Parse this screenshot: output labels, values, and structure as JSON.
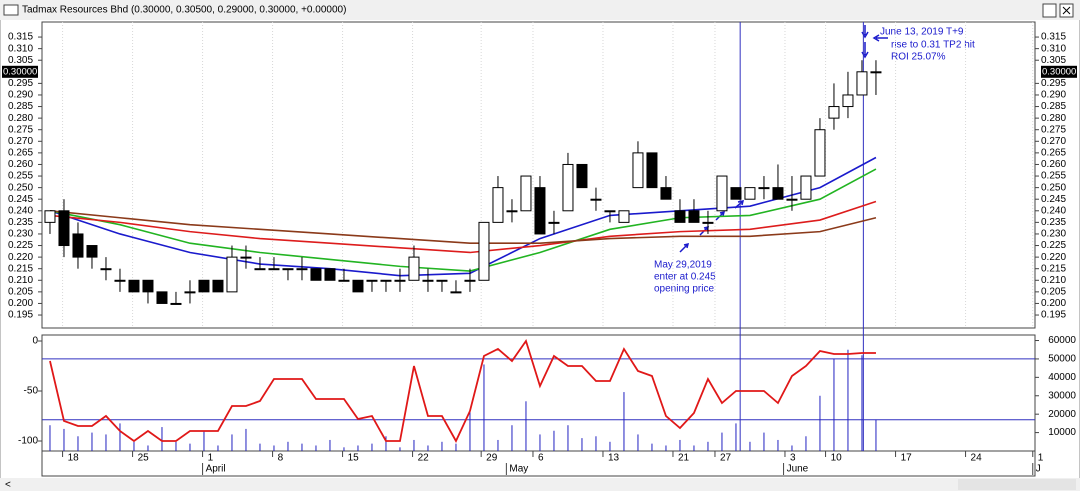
{
  "chart_data": {
    "type": "candlestick",
    "title": "Tadmax Resources Bhd (0.30000, 0.30500, 0.29000, 0.30000, +0.00000)",
    "ohlc": [
      [
        0.235,
        0.24,
        0.23,
        0.24
      ],
      [
        0.24,
        0.245,
        0.22,
        0.225
      ],
      [
        0.23,
        0.235,
        0.215,
        0.22
      ],
      [
        0.225,
        0.225,
        0.215,
        0.22
      ],
      [
        0.215,
        0.22,
        0.21,
        0.215
      ],
      [
        0.21,
        0.215,
        0.205,
        0.21
      ],
      [
        0.21,
        0.21,
        0.205,
        0.205
      ],
      [
        0.21,
        0.21,
        0.2,
        0.205
      ],
      [
        0.205,
        0.205,
        0.2,
        0.2
      ],
      [
        0.2,
        0.205,
        0.2,
        0.2
      ],
      [
        0.205,
        0.21,
        0.2,
        0.205
      ],
      [
        0.21,
        0.21,
        0.205,
        0.205
      ],
      [
        0.21,
        0.21,
        0.205,
        0.205
      ],
      [
        0.205,
        0.225,
        0.205,
        0.22
      ],
      [
        0.22,
        0.225,
        0.215,
        0.22
      ],
      [
        0.215,
        0.22,
        0.215,
        0.215
      ],
      [
        0.215,
        0.22,
        0.215,
        0.215
      ],
      [
        0.215,
        0.215,
        0.21,
        0.215
      ],
      [
        0.215,
        0.22,
        0.21,
        0.215
      ],
      [
        0.215,
        0.215,
        0.21,
        0.21
      ],
      [
        0.215,
        0.215,
        0.21,
        0.21
      ],
      [
        0.21,
        0.215,
        0.21,
        0.21
      ],
      [
        0.21,
        0.21,
        0.205,
        0.205
      ],
      [
        0.21,
        0.21,
        0.205,
        0.21
      ],
      [
        0.21,
        0.21,
        0.205,
        0.21
      ],
      [
        0.21,
        0.215,
        0.205,
        0.21
      ],
      [
        0.21,
        0.225,
        0.21,
        0.22
      ],
      [
        0.21,
        0.215,
        0.205,
        0.21
      ],
      [
        0.21,
        0.21,
        0.205,
        0.21
      ],
      [
        0.205,
        0.21,
        0.205,
        0.205
      ],
      [
        0.21,
        0.215,
        0.205,
        0.21
      ],
      [
        0.21,
        0.235,
        0.21,
        0.235
      ],
      [
        0.235,
        0.255,
        0.235,
        0.25
      ],
      [
        0.24,
        0.245,
        0.235,
        0.24
      ],
      [
        0.24,
        0.255,
        0.24,
        0.255
      ],
      [
        0.25,
        0.255,
        0.23,
        0.23
      ],
      [
        0.235,
        0.24,
        0.23,
        0.235
      ],
      [
        0.24,
        0.265,
        0.24,
        0.26
      ],
      [
        0.26,
        0.26,
        0.25,
        0.25
      ],
      [
        0.245,
        0.25,
        0.24,
        0.245
      ],
      [
        0.24,
        0.24,
        0.235,
        0.24
      ],
      [
        0.235,
        0.24,
        0.235,
        0.24
      ],
      [
        0.25,
        0.27,
        0.25,
        0.265
      ],
      [
        0.265,
        0.265,
        0.25,
        0.25
      ],
      [
        0.25,
        0.255,
        0.245,
        0.245
      ],
      [
        0.24,
        0.245,
        0.235,
        0.235
      ],
      [
        0.24,
        0.245,
        0.235,
        0.235
      ],
      [
        0.235,
        0.24,
        0.23,
        0.235
      ],
      [
        0.24,
        0.255,
        0.24,
        0.255
      ],
      [
        0.25,
        0.25,
        0.245,
        0.245
      ],
      [
        0.245,
        0.25,
        0.245,
        0.25
      ],
      [
        0.25,
        0.255,
        0.245,
        0.25
      ],
      [
        0.25,
        0.26,
        0.245,
        0.245
      ],
      [
        0.245,
        0.255,
        0.24,
        0.245
      ],
      [
        0.245,
        0.255,
        0.245,
        0.255
      ],
      [
        0.255,
        0.28,
        0.255,
        0.275
      ],
      [
        0.28,
        0.295,
        0.275,
        0.285
      ],
      [
        0.285,
        0.3,
        0.28,
        0.29
      ],
      [
        0.29,
        0.305,
        0.29,
        0.3
      ],
      [
        0.3,
        0.305,
        0.29,
        0.3
      ]
    ],
    "series": [
      {
        "color": "#1a1acc",
        "x": [
          0,
          5,
          10,
          15,
          20,
          25,
          30,
          35,
          40,
          45,
          50,
          55,
          59
        ],
        "values": [
          0.24,
          0.23,
          0.222,
          0.217,
          0.215,
          0.212,
          0.213,
          0.228,
          0.238,
          0.24,
          0.242,
          0.25,
          0.263
        ]
      },
      {
        "color": "#22b422",
        "x": [
          0,
          5,
          10,
          15,
          20,
          25,
          30,
          35,
          40,
          45,
          50,
          55,
          59
        ],
        "values": [
          0.24,
          0.234,
          0.226,
          0.222,
          0.219,
          0.216,
          0.214,
          0.222,
          0.232,
          0.237,
          0.238,
          0.245,
          0.258
        ]
      },
      {
        "color": "#dd1c1c",
        "x": [
          0,
          5,
          10,
          15,
          20,
          25,
          30,
          35,
          40,
          45,
          50,
          55,
          59
        ],
        "values": [
          0.238,
          0.235,
          0.231,
          0.228,
          0.226,
          0.224,
          0.222,
          0.225,
          0.229,
          0.231,
          0.232,
          0.236,
          0.244
        ]
      },
      {
        "color": "#8b3a1a",
        "x": [
          0,
          5,
          10,
          15,
          20,
          25,
          30,
          35,
          40,
          45,
          50,
          55,
          59
        ],
        "values": [
          0.24,
          0.237,
          0.234,
          0.232,
          0.23,
          0.228,
          0.226,
          0.226,
          0.228,
          0.229,
          0.229,
          0.231,
          0.237
        ]
      }
    ],
    "xlim": [
      -0.57,
      70.36
    ],
    "ylim": [
      0.1894,
      0.3215
    ],
    "yticks": [
      {
        "value": 0.315,
        "label": "0.315"
      },
      {
        "value": 0.31,
        "label": "0.310"
      },
      {
        "value": 0.305,
        "label": "0.305"
      },
      {
        "value": 0.295,
        "label": "0.295"
      },
      {
        "value": 0.29,
        "label": "0.290"
      },
      {
        "value": 0.285,
        "label": "0.285"
      },
      {
        "value": 0.28,
        "label": "0.280"
      },
      {
        "value": 0.275,
        "label": "0.275"
      },
      {
        "value": 0.27,
        "label": "0.270"
      },
      {
        "value": 0.265,
        "label": "0.265"
      },
      {
        "value": 0.26,
        "label": "0.260"
      },
      {
        "value": 0.255,
        "label": "0.255"
      },
      {
        "value": 0.25,
        "label": "0.250"
      },
      {
        "value": 0.245,
        "label": "0.245"
      },
      {
        "value": 0.24,
        "label": "0.240"
      },
      {
        "value": 0.235,
        "label": "0.235"
      },
      {
        "value": 0.23,
        "label": "0.230"
      },
      {
        "value": 0.225,
        "label": "0.225"
      },
      {
        "value": 0.22,
        "label": "0.220"
      },
      {
        "value": 0.215,
        "label": "0.215"
      },
      {
        "value": 0.21,
        "label": "0.210"
      },
      {
        "value": 0.205,
        "label": "0.205"
      },
      {
        "value": 0.2,
        "label": "0.200"
      },
      {
        "value": 0.195,
        "label": "0.195"
      }
    ],
    "last_price": {
      "value": 0.3,
      "label": "0.30000"
    },
    "xticks": [
      {
        "value": 0.9,
        "label": "18"
      },
      {
        "value": 5.9,
        "label": "25"
      },
      {
        "value": 10.9,
        "label": "1"
      },
      {
        "value": 15.9,
        "label": "8"
      },
      {
        "value": 20.9,
        "label": "15"
      },
      {
        "value": 25.9,
        "label": "22"
      },
      {
        "value": 30.8,
        "label": "29"
      },
      {
        "value": 34.5,
        "label": "6"
      },
      {
        "value": 39.5,
        "label": "13"
      },
      {
        "value": 44.5,
        "label": "21"
      },
      {
        "value": 47.5,
        "label": "27"
      },
      {
        "value": 52.5,
        "label": "3"
      },
      {
        "value": 55.4,
        "label": "10"
      },
      {
        "value": 60.4,
        "label": "17"
      },
      {
        "value": 65.4,
        "label": "24"
      },
      {
        "value": 70.2,
        "label": "1"
      }
    ],
    "month_ticks": [
      {
        "value": 10.9,
        "label": "April"
      },
      {
        "value": 32.6,
        "label": "May"
      },
      {
        "value": 52.4,
        "label": "June"
      },
      {
        "value": 70.2,
        "label": "J"
      }
    ],
    "grid": true,
    "vlines": [
      49.3,
      58.1
    ],
    "annotations": [
      "June 13, 2019 T+9",
      "rise to 0.31 TP2 hit",
      "ROI 25.07%",
      "May 29,2019",
      "enter at 0.245",
      "opening price"
    ],
    "oscillator": {
      "color": "#e01818",
      "ylim": [
        -110,
        6
      ],
      "yticks": [
        0,
        -50,
        -100
      ],
      "values": [
        -20,
        -80,
        -85,
        -85,
        -75,
        -90,
        -100,
        -90,
        -100,
        -100,
        -90,
        -90,
        -90,
        -65,
        -65,
        -60,
        -38,
        -38,
        -38,
        -58,
        -58,
        -58,
        -78,
        -75,
        -100,
        -100,
        -25,
        -75,
        -75,
        -100,
        -70,
        -15,
        -8,
        -20,
        0,
        -45,
        -15,
        -25,
        -25,
        -40,
        -40,
        -8,
        -30,
        -35,
        -75,
        -87,
        -72,
        -38,
        -62,
        -50,
        -50,
        -50,
        -62,
        -35,
        -25,
        -10,
        -13,
        -13,
        -12,
        -12
      ]
    },
    "volume": {
      "color": "#2020c0",
      "y2lim": [
        0,
        63000
      ],
      "y2ticks": [
        10000,
        20000,
        30000,
        40000,
        50000,
        60000
      ],
      "reference_lines": [
        50000,
        17000
      ],
      "values": [
        14000,
        12000,
        8000,
        10000,
        9000,
        15000,
        5000,
        3000,
        13000,
        5000,
        4000,
        11000,
        3000,
        9000,
        12000,
        4000,
        3000,
        5000,
        4000,
        3000,
        6000,
        2000,
        3000,
        4000,
        8000,
        2000,
        6000,
        3000,
        5000,
        4000,
        22000,
        47000,
        6000,
        14000,
        27000,
        9000,
        11000,
        14000,
        7000,
        8000,
        5000,
        32000,
        9000,
        4000,
        3000,
        6000,
        3000,
        5000,
        10000,
        15000,
        5000,
        10000,
        6000,
        3000,
        8000,
        30000,
        50000,
        55000,
        52000,
        17000
      ]
    }
  }
}
